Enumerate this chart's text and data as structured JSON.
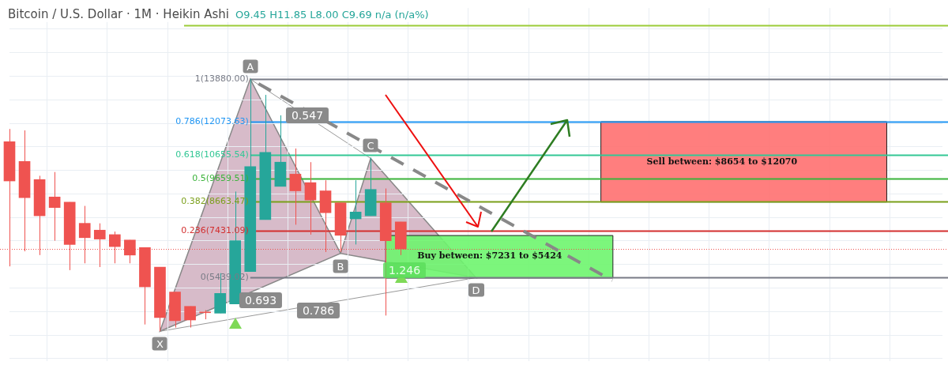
{
  "chart_data": {
    "type": "candlestick",
    "title": "Bitcoin / U.S. Dollar · 1M · Heikin Ashi",
    "subtitle": "O9.45 H11.85 L8.00 C9.69 n/a (n/a%)",
    "categories": [
      null,
      null,
      null,
      null,
      null,
      null,
      null,
      null,
      null,
      null,
      null,
      null,
      null,
      null,
      null,
      null,
      null,
      null,
      null,
      null,
      null,
      null,
      null,
      null,
      null,
      null,
      null,
      null,
      null,
      null,
      null,
      null,
      null,
      null,
      null,
      null,
      null,
      null,
      null,
      null,
      null,
      null,
      null,
      null,
      null,
      null,
      null,
      null,
      null,
      null,
      null,
      null,
      null,
      null,
      null,
      null,
      null,
      null,
      null,
      null,
      null,
      null,
      null
    ],
    "ohlc": [
      [
        11220,
        11760,
        5920,
        9550
      ],
      [
        10380,
        11700,
        6560,
        8840
      ],
      [
        9610,
        9770,
        6400,
        8070
      ],
      [
        8870,
        9930,
        7010,
        8420
      ],
      [
        8650,
        8650,
        5760,
        6850
      ],
      [
        7750,
        8490,
        6050,
        7140
      ],
      [
        7460,
        7750,
        5890,
        7080
      ],
      [
        7270,
        7400,
        6050,
        6760
      ],
      [
        7040,
        7040,
        6050,
        6400
      ],
      [
        6720,
        6720,
        3450,
        5050
      ],
      [
        5890,
        5890,
        3160,
        3740
      ],
      [
        4830,
        4830,
        3320,
        3610
      ],
      [
        4220,
        4220,
        3320,
        3640
      ],
      [
        3970,
        4060,
        3670,
        3950
      ],
      [
        3930,
        5630,
        3930,
        4770
      ],
      [
        4320,
        9100,
        4320,
        7010
      ],
      [
        5700,
        13880,
        5700,
        10160
      ],
      [
        7910,
        13210,
        7910,
        10770
      ],
      [
        9320,
        12340,
        9320,
        10350
      ],
      [
        9840,
        10930,
        7690,
        9130
      ],
      [
        9480,
        10350,
        7270,
        8740
      ],
      [
        9130,
        9580,
        6530,
        8200
      ],
      [
        8620,
        8620,
        6530,
        7240
      ],
      [
        7940,
        9580,
        6850,
        8230
      ],
      [
        8070,
        10540,
        8070,
        9190
      ],
      [
        8620,
        9230,
        3830,
        7010
      ],
      [
        7810,
        7810,
        6400,
        6660
      ],
      null,
      null,
      null,
      null,
      null,
      null,
      null,
      null,
      null,
      null,
      null,
      null,
      null,
      null,
      null,
      null,
      null,
      null,
      null,
      null,
      null,
      null,
      null,
      null,
      null,
      null,
      null,
      null,
      null,
      null,
      null,
      null,
      null,
      null,
      null,
      null
    ],
    "colors": [
      "#ef5350",
      "#ef5350",
      "#ef5350",
      "#ef5350",
      "#ef5350",
      "#ef5350",
      "#ef5350",
      "#ef5350",
      "#ef5350",
      "#ef5350",
      "#ef5350",
      "#ef5350",
      "#ef5350",
      "#ef5350",
      "#26a69a",
      "#26a69a",
      "#26a69a",
      "#26a69a",
      "#26a69a",
      "#ef5350",
      "#ef5350",
      "#ef5350",
      "#ef5350",
      "#26a69a",
      "#26a69a",
      "#ef5350",
      "#ef5350",
      null,
      null,
      null,
      null,
      null,
      null,
      null,
      null,
      null,
      null,
      null,
      null,
      null,
      null,
      null,
      null,
      null,
      null,
      null,
      null,
      null,
      null,
      null,
      null,
      null,
      null,
      null,
      null,
      null,
      null,
      null,
      null,
      null,
      null,
      null,
      null
    ],
    "ylim": [
      1900,
      16900
    ],
    "yticks": [
      {
        "value": 2000,
        "label": null
      },
      {
        "value": 3000,
        "label": null
      },
      {
        "value": 4000,
        "label": null
      },
      {
        "value": 5000,
        "label": null
      },
      {
        "value": 6000,
        "label": null
      },
      {
        "value": 7000,
        "label": null
      },
      {
        "value": 8000,
        "label": null
      },
      {
        "value": 9000,
        "label": null
      },
      {
        "value": 10000,
        "label": null
      },
      {
        "value": 11000,
        "label": null
      },
      {
        "value": 12000,
        "label": null
      },
      {
        "value": 13000,
        "label": null
      },
      {
        "value": 14000,
        "label": null
      },
      {
        "value": 15000,
        "label": null
      },
      {
        "value": 16000,
        "label": null
      }
    ],
    "grid": true,
    "legend": false,
    "ref_lines": [
      {
        "axis": "y",
        "value": 16176,
        "label": null,
        "color": "#9ccc3a"
      },
      {
        "axis": "y",
        "value": 13880,
        "label": "1(13880.00)",
        "color": "#787b86"
      },
      {
        "axis": "y",
        "value": 12073.63,
        "label": "0.786(12073.63)",
        "color": "#2196f3"
      },
      {
        "axis": "y",
        "value": 10655.54,
        "label": "0.618(10655.54)",
        "color": "#33c795"
      },
      {
        "axis": "y",
        "value": 9659.51,
        "label": "0.5(9659.51)",
        "color": "#3bb33b"
      },
      {
        "axis": "y",
        "value": 8663.47,
        "label": "0.382(8663.47)",
        "color": "#7a9f1a"
      },
      {
        "axis": "y",
        "value": 7431.09,
        "label": "0.236(7431.09)",
        "color": "#d32f2f"
      },
      {
        "axis": "y",
        "value": 5439.02,
        "label": "0(5439.02)",
        "color": "#787b86"
      },
      {
        "axis": "y",
        "value": 6660,
        "label": null,
        "color": "#ef5350",
        "line_style": "dotted"
      }
    ],
    "bands": [
      {
        "axis": "y",
        "from": 5424,
        "to": 7231,
        "label": "Buy between: $7231 to $5424",
        "color": "#6ef56e"
      },
      {
        "axis": "y",
        "from": 8654,
        "to": 12070,
        "label": "Sell between: $8654 to $12070",
        "color": "#ff7070"
      }
    ],
    "annotations": [
      {
        "text": "X",
        "y": 3160
      },
      {
        "text": "A",
        "y": 13880
      },
      {
        "text": "B",
        "y": 6470
      },
      {
        "text": "C",
        "y": 10510
      },
      {
        "text": "D",
        "y": 5439
      },
      "0.547",
      "0.693",
      "0.786",
      "1.246"
    ]
  }
}
